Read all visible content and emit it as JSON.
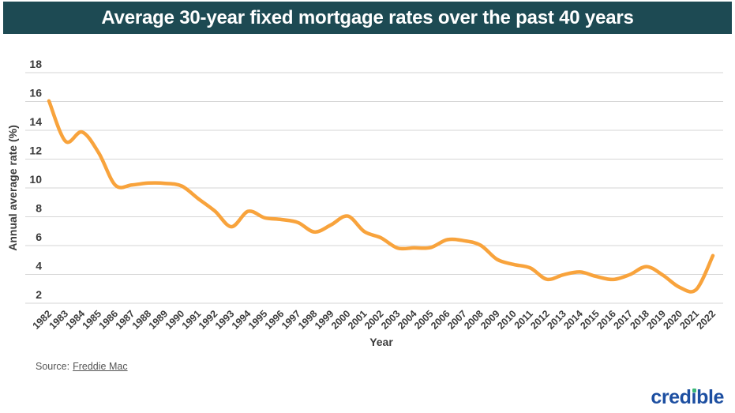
{
  "header": {
    "title": "Average 30-year fixed mortgage rates over the past 40 years",
    "background_color": "#1d4a53",
    "text_color": "#ffffff"
  },
  "chart_data": {
    "type": "line",
    "title": "Average 30-year fixed mortgage rates over the past 40 years",
    "xlabel": "Year",
    "ylabel": "Annual average rate (%)",
    "x": [
      1982,
      1983,
      1984,
      1985,
      1986,
      1987,
      1988,
      1989,
      1990,
      1991,
      1992,
      1993,
      1994,
      1995,
      1996,
      1997,
      1998,
      1999,
      2000,
      2001,
      2002,
      2003,
      2004,
      2005,
      2006,
      2007,
      2008,
      2009,
      2010,
      2011,
      2012,
      2013,
      2014,
      2015,
      2016,
      2017,
      2018,
      2019,
      2020,
      2021,
      2022
    ],
    "values": [
      16.04,
      13.24,
      13.88,
      12.43,
      10.19,
      10.21,
      10.34,
      10.32,
      10.13,
      9.25,
      8.39,
      7.31,
      8.38,
      7.93,
      7.81,
      7.6,
      6.94,
      7.44,
      8.05,
      6.97,
      6.54,
      5.83,
      5.84,
      5.87,
      6.41,
      6.34,
      6.03,
      5.04,
      4.69,
      4.45,
      3.66,
      3.98,
      4.17,
      3.85,
      3.65,
      3.99,
      4.54,
      3.94,
      3.1,
      2.96,
      5.3
    ],
    "ylim": [
      2,
      18
    ],
    "yticks": [
      2,
      4,
      6,
      8,
      10,
      12,
      14,
      16,
      18
    ],
    "grid": true,
    "legend": false,
    "line_color": "#f8a33c",
    "gridline_color": "#d6d6d6",
    "tick_label_color": "#3c3c3c"
  },
  "source": {
    "prefix": "Source:",
    "link_text": "Freddie Mac"
  },
  "logo": {
    "text": "credible",
    "color": "#1d4fa1",
    "dot_color": "#3cb878"
  }
}
